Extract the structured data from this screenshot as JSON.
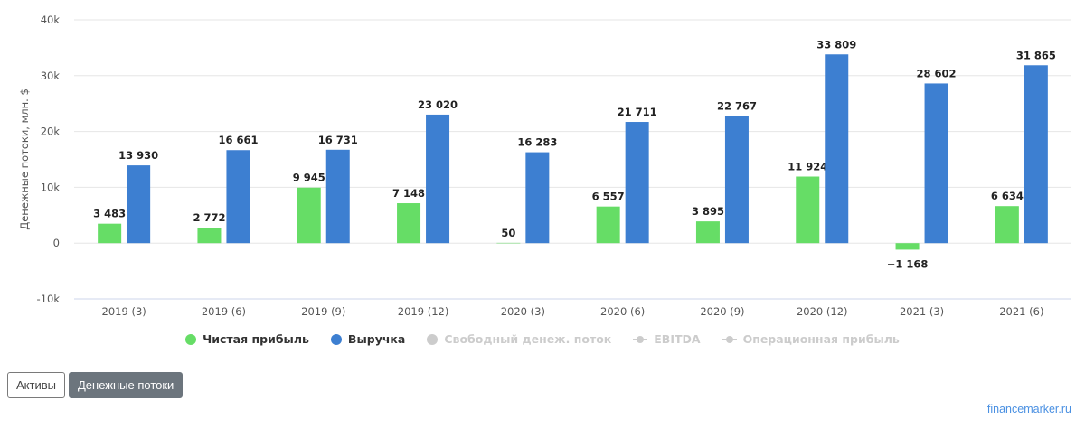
{
  "chart_data": {
    "type": "bar",
    "ylabel": "Денежные потоки, млн. $",
    "ylim": [
      -10000,
      40000
    ],
    "yticks": [
      40000,
      30000,
      20000,
      10000,
      0,
      -10000
    ],
    "ytick_labels": [
      "40k",
      "30k",
      "20k",
      "10k",
      "0",
      "-10k"
    ],
    "grid": true,
    "legend_position": "bottom-center",
    "categories": [
      "2019 (3)",
      "2019 (6)",
      "2019 (9)",
      "2019 (12)",
      "2020 (3)",
      "2020 (6)",
      "2020 (9)",
      "2020 (12)",
      "2021 (3)",
      "2021 (6)"
    ],
    "series": [
      {
        "name": "Чистая прибыль",
        "color": "#66dd66",
        "values": [
          3483,
          2772,
          9945,
          7148,
          50,
          6557,
          3895,
          11924,
          -1168,
          6634
        ],
        "labels": [
          "3 483",
          "2 772",
          "9 945",
          "7 148",
          "50",
          "6 557",
          "3 895",
          "11 924",
          "−1 168",
          "6 634"
        ]
      },
      {
        "name": "Выручка",
        "color": "#3d7fd1",
        "values": [
          13930,
          16661,
          16731,
          23020,
          16283,
          21711,
          22767,
          33809,
          28602,
          31865
        ],
        "labels": [
          "13 930",
          "16 661",
          "16 731",
          "23 020",
          "16 283",
          "21 711",
          "22 767",
          "33 809",
          "28 602",
          "31 865"
        ]
      }
    ],
    "legend": [
      {
        "name": "Чистая прибыль",
        "marker": "dot",
        "color": "#66dd66",
        "active": true
      },
      {
        "name": "Выручка",
        "marker": "dot",
        "color": "#3d7fd1",
        "active": true
      },
      {
        "name": "Свободный денеж. поток",
        "marker": "dot",
        "color": "#cccccc",
        "active": false
      },
      {
        "name": "EBITDA",
        "marker": "line",
        "color": "#cccccc",
        "active": false
      },
      {
        "name": "Операционная прибыль",
        "marker": "line",
        "color": "#cccccc",
        "active": false
      }
    ]
  },
  "buttons": {
    "assets": "Активы",
    "cashflows": "Денежные потоки"
  },
  "brand": "financemarker.ru"
}
